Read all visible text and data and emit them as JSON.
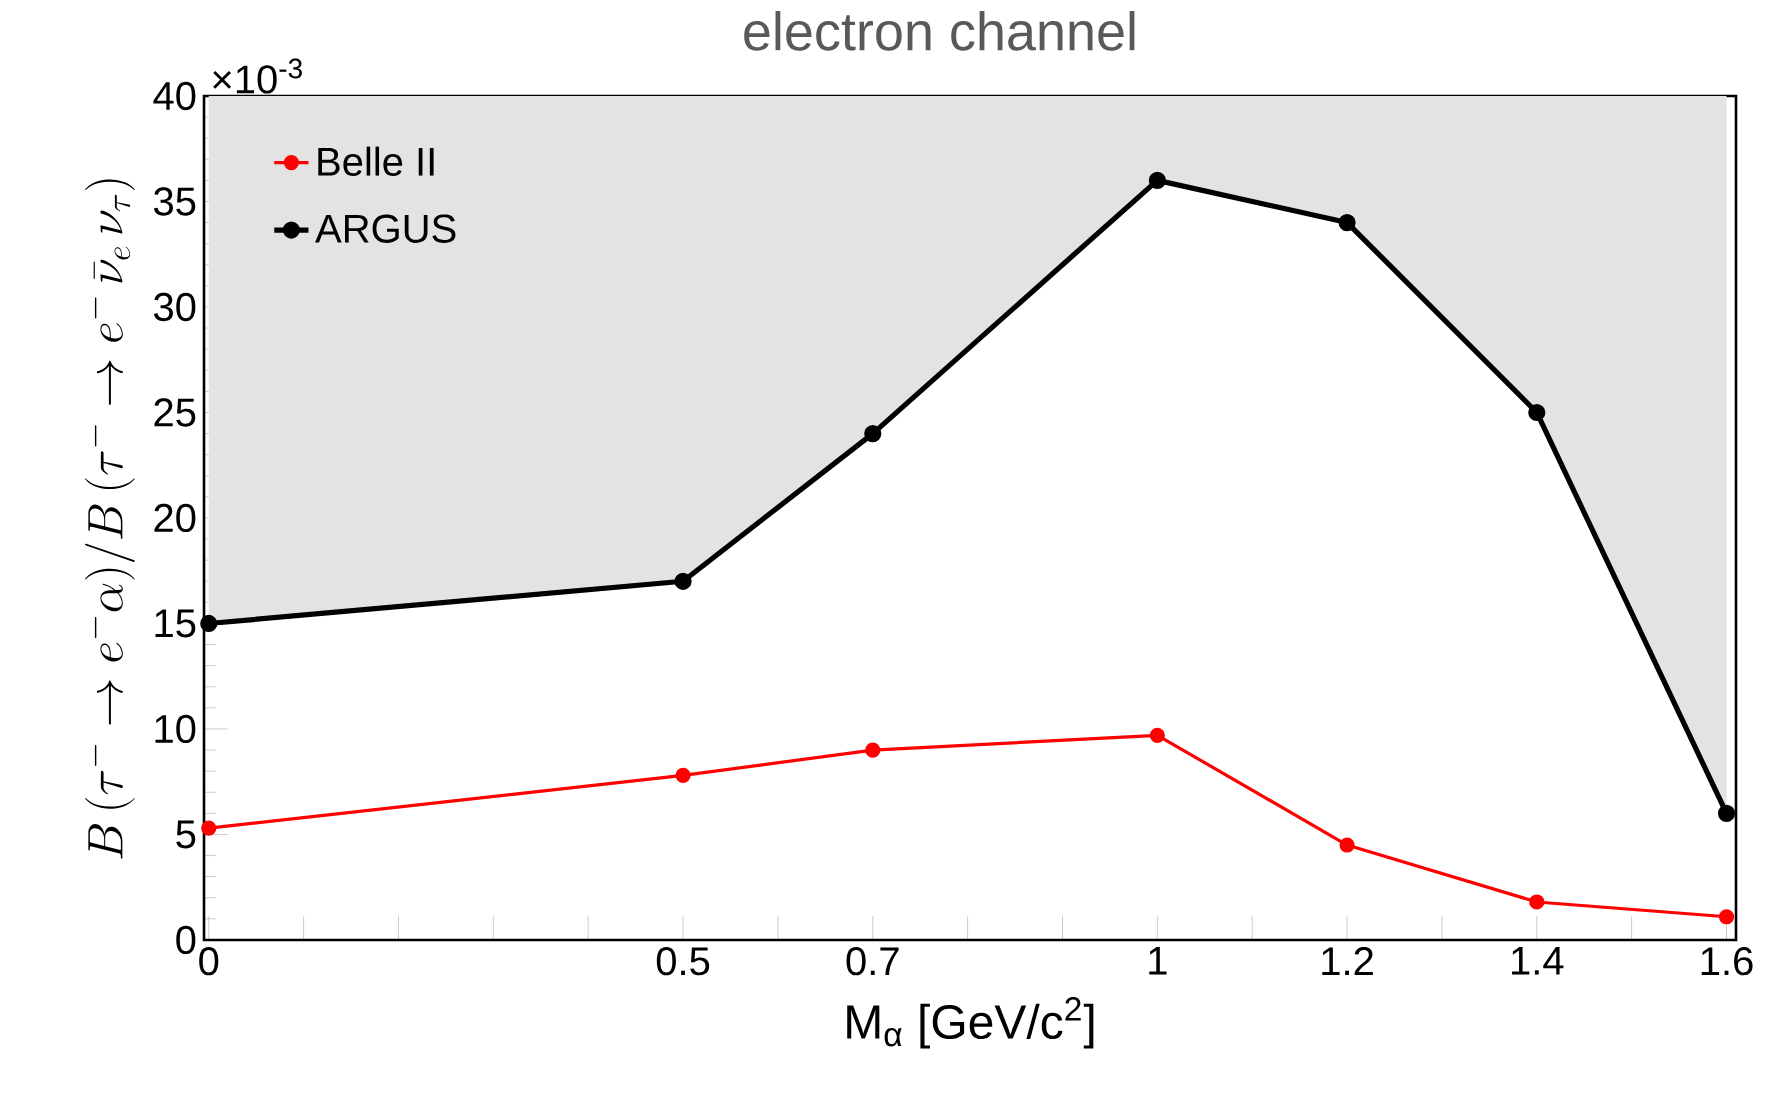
{
  "chart_data": {
    "type": "line",
    "title": "electron channel",
    "xlabel": "M$_{α}$ [GeV/c$^{2}$]",
    "ylabel": "B\\,(\\tau^{-}\\rightarrow e^{-}\\alpha)/B\\,(\\tau^{-}\\rightarrow e^{-}\\,\\bar{\\nu}_{e}\\,\\nu_{\\tau})",
    "annotations": [
      "×10$^{-3}$"
    ],
    "x": [
      0,
      0.5,
      0.7,
      1,
      1.2,
      1.4,
      1.6
    ],
    "series": [
      {
        "name": "Belle II",
        "color": "#ff0000",
        "values": [
          5.3,
          7.8,
          9.0,
          9.7,
          4.5,
          1.8,
          1.1
        ]
      },
      {
        "name": "ARGUS",
        "color": "#000000",
        "values": [
          15,
          17,
          24,
          36,
          34,
          25,
          6
        ],
        "lower": [
          15,
          17,
          24,
          36,
          34,
          25,
          6
        ],
        "upper": [
          40,
          40,
          40,
          40,
          40,
          40,
          40
        ]
      }
    ],
    "xlim": [
      -0.005,
      1.61
    ],
    "ylim": [
      0,
      40
    ],
    "xticks": [
      0,
      {
        "value": 0.1,
        "label": null
      },
      {
        "value": 0.2,
        "label": null
      },
      {
        "value": 0.3,
        "label": null
      },
      {
        "value": 0.4,
        "label": null
      },
      0.5,
      {
        "value": 0.6,
        "label": null
      },
      0.7,
      {
        "value": 0.8,
        "label": null
      },
      {
        "value": 0.9,
        "label": null
      },
      1,
      {
        "value": 1.1,
        "label": null
      },
      1.2,
      {
        "value": 1.3,
        "label": null
      },
      1.4,
      {
        "value": 1.5,
        "label": null
      },
      1.6
    ],
    "yticks": [
      0,
      5,
      10,
      15,
      20,
      25,
      30,
      35,
      40
    ],
    "legend": "top left",
    "marker": "circle",
    "grid": false
  }
}
